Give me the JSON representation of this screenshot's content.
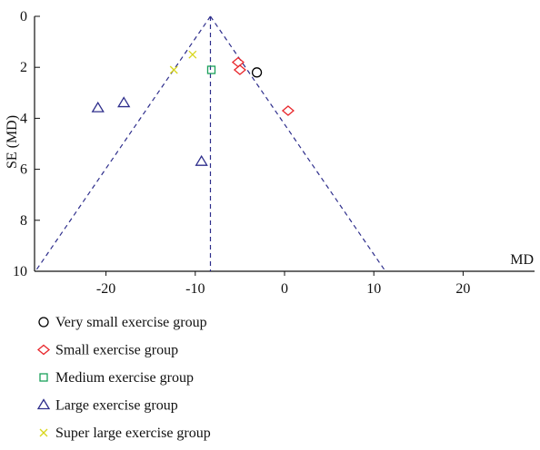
{
  "chart_data": {
    "type": "scatter",
    "xlabel": "MD",
    "ylabel": "SE (MD)",
    "xlim": [
      -28,
      28
    ],
    "ylim": [
      0,
      10
    ],
    "y_inverted": true,
    "grid": false,
    "xticks": [
      -20,
      -10,
      0,
      10,
      20
    ],
    "yticks": [
      0,
      2,
      4,
      6,
      8,
      10
    ],
    "xtick_labels": [
      "-20",
      "-10",
      "0",
      "10",
      "20"
    ],
    "ytick_labels": [
      "0",
      "2",
      "4",
      "6",
      "8",
      "10"
    ],
    "pooled_estimate": -8.3,
    "funnel_multiplier": 1.96,
    "legend_position": "bottom-left",
    "series": [
      {
        "name": "Very small exercise group",
        "marker": "circle",
        "color": "#000000",
        "points": [
          {
            "x": -3.1,
            "y": 2.2
          }
        ]
      },
      {
        "name": "Small exercise group",
        "marker": "diamond",
        "color": "#e8262b",
        "points": [
          {
            "x": -5.2,
            "y": 1.8
          },
          {
            "x": -5.0,
            "y": 2.1
          },
          {
            "x": 0.4,
            "y": 3.7
          }
        ]
      },
      {
        "name": "Medium exercise group",
        "marker": "square",
        "color": "#1aa05a",
        "points": [
          {
            "x": -8.2,
            "y": 2.1
          }
        ]
      },
      {
        "name": "Large exercise group",
        "marker": "triangle",
        "color": "#2e2e8c",
        "points": [
          {
            "x": -20.9,
            "y": 3.6
          },
          {
            "x": -18.0,
            "y": 3.4
          },
          {
            "x": -9.3,
            "y": 5.7
          }
        ]
      },
      {
        "name": "Super large exercise group",
        "marker": "x",
        "color": "#d8d61e",
        "points": [
          {
            "x": -12.4,
            "y": 2.1
          },
          {
            "x": -10.3,
            "y": 1.5
          }
        ]
      }
    ]
  }
}
